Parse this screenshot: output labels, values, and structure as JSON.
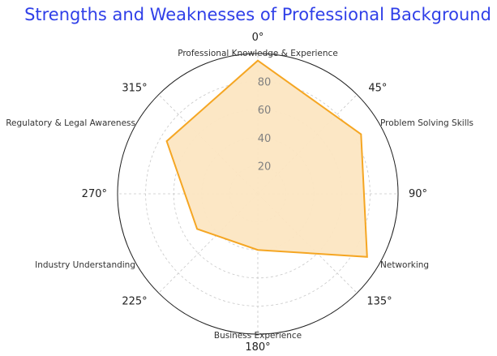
{
  "colors": {
    "title": "#2f3fe8",
    "line": "#f5a623",
    "fill": "#fce6c2",
    "grid": "#c8c8c8",
    "tick_label": "#808080"
  },
  "chart_data": {
    "type": "radar",
    "title": "Strengths and Weaknesses of Professional Background",
    "categories": [
      "Professional Knowledge & Experience",
      "Problem Solving Skills",
      "Networking",
      "Business Experience",
      "Industry Understanding",
      "Regulatory & Legal Awareness"
    ],
    "series": [
      {
        "values": [
          95,
          85,
          90,
          40,
          50,
          75
        ]
      }
    ],
    "rlim": [
      0,
      100
    ],
    "radial_ticks": [
      "20",
      "40",
      "60",
      "80"
    ],
    "angle_labels": [
      "0°",
      "45°",
      "90°",
      "135°",
      "180°",
      "225°",
      "270°",
      "315°"
    ],
    "grid": true
  }
}
